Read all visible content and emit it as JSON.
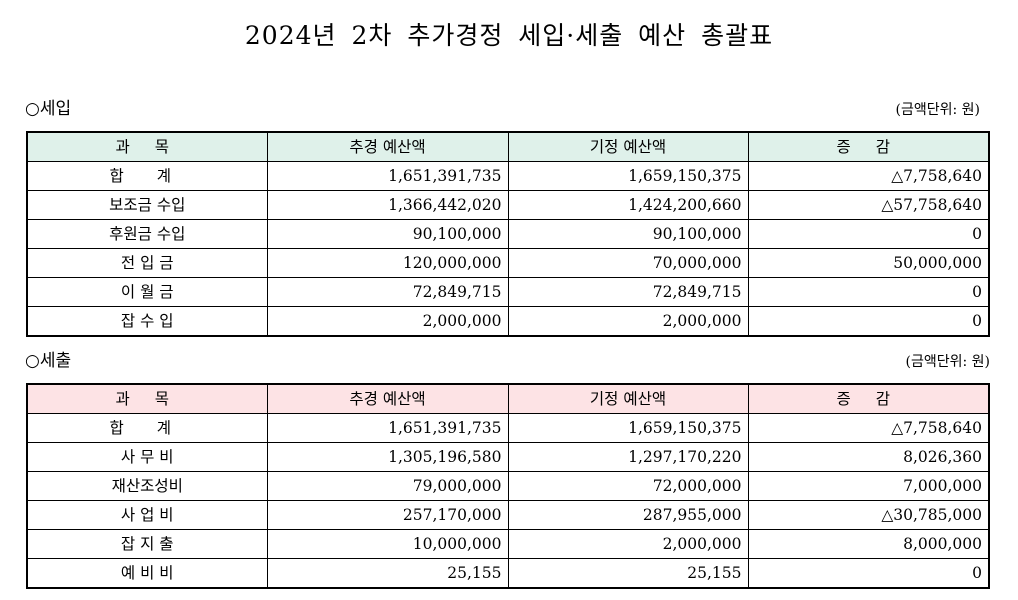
{
  "title": "2024년 2차 추가경정 세입·세출 예산 총괄표",
  "unit": "(금액단위: 원)",
  "columns": [
    "과 목",
    "추경 예산액",
    "기정 예산액",
    "증 감"
  ],
  "revenue": {
    "section_label": "○세입",
    "header_bg": "#dff1ea",
    "rows": [
      {
        "category": "합 계",
        "supplementary": "1,651,391,735",
        "existing": "1,659,150,375",
        "change": "△7,758,640"
      },
      {
        "category": "보조금 수입",
        "supplementary": "1,366,442,020",
        "existing": "1,424,200,660",
        "change": "△57,758,640"
      },
      {
        "category": "후원금 수입",
        "supplementary": "90,100,000",
        "existing": "90,100,000",
        "change": "0"
      },
      {
        "category": "전 입 금",
        "supplementary": "120,000,000",
        "existing": "70,000,000",
        "change": "50,000,000"
      },
      {
        "category": "이 월 금",
        "supplementary": "72,849,715",
        "existing": "72,849,715",
        "change": "0"
      },
      {
        "category": "잡 수 입",
        "supplementary": "2,000,000",
        "existing": "2,000,000",
        "change": "0"
      }
    ]
  },
  "expenditure": {
    "section_label": "○세출",
    "header_bg": "#fde3e5",
    "rows": [
      {
        "category": "합 계",
        "supplementary": "1,651,391,735",
        "existing": "1,659,150,375",
        "change": "△7,758,640"
      },
      {
        "category": "사 무 비",
        "supplementary": "1,305,196,580",
        "existing": "1,297,170,220",
        "change": "8,026,360"
      },
      {
        "category": "재산조성비",
        "supplementary": "79,000,000",
        "existing": "72,000,000",
        "change": "7,000,000"
      },
      {
        "category": "사 업 비",
        "supplementary": "257,170,000",
        "existing": "287,955,000",
        "change": "△30,785,000"
      },
      {
        "category": "잡 지 출",
        "supplementary": "10,000,000",
        "existing": "2,000,000",
        "change": "8,000,000"
      },
      {
        "category": "예 비 비",
        "supplementary": "25,155",
        "existing": "25,155",
        "change": "0"
      }
    ]
  }
}
